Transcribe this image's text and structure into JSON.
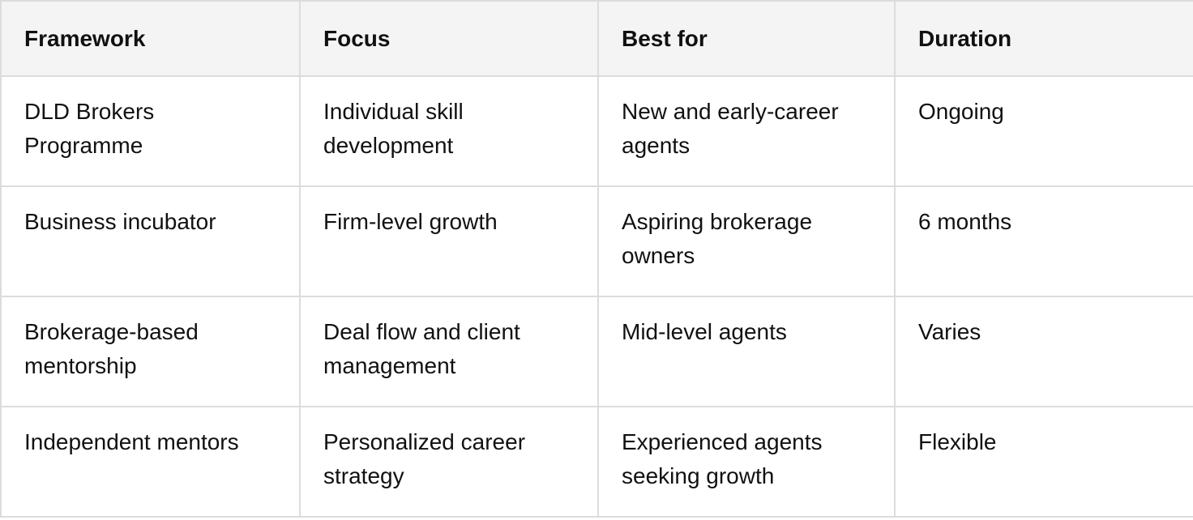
{
  "table": {
    "headers": [
      "Framework",
      "Focus",
      "Best for",
      "Duration"
    ],
    "rows": [
      [
        "DLD Brokers Programme",
        "Individual skill development",
        "New and early-career agents",
        "Ongoing"
      ],
      [
        "Business incubator",
        "Firm-level growth",
        "Aspiring brokerage owners",
        "6 months"
      ],
      [
        "Brokerage-based mentorship",
        "Deal flow and client management",
        "Mid-level agents",
        "Varies"
      ],
      [
        "Independent mentors",
        "Personalized career strategy",
        "Experienced agents seeking growth",
        "Flexible"
      ]
    ]
  },
  "colors": {
    "header_bg": "#f4f4f4",
    "border": "#dcdcdc",
    "text": "#111111"
  }
}
